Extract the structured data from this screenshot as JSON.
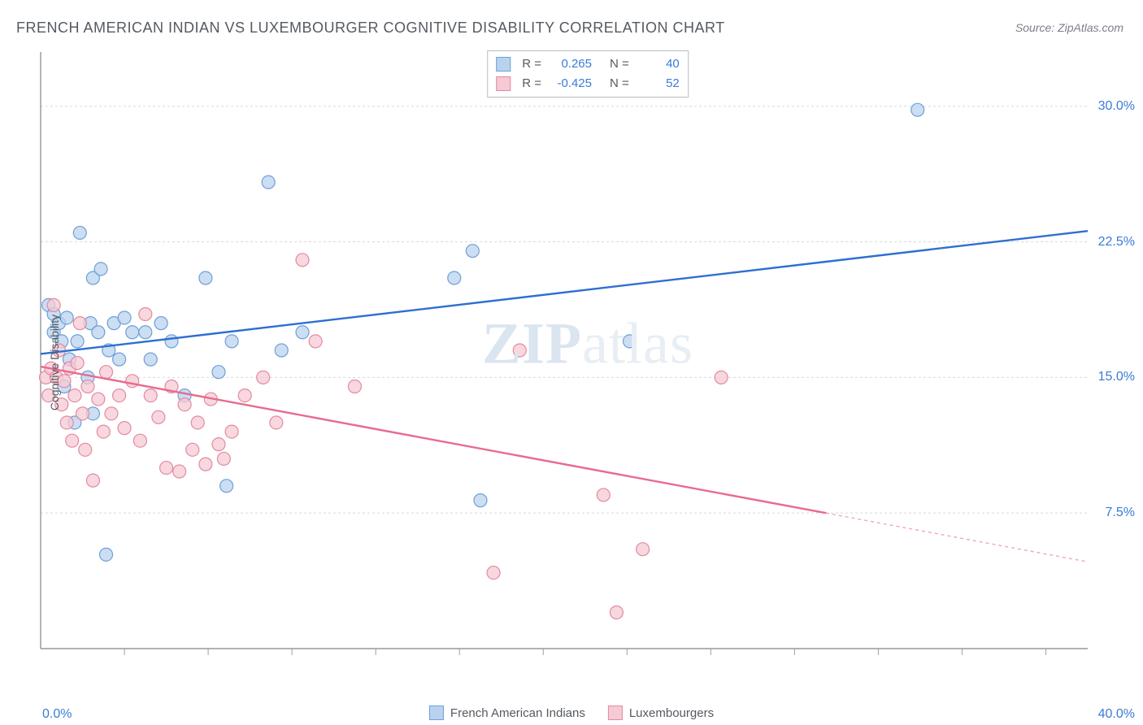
{
  "title": "FRENCH AMERICAN INDIAN VS LUXEMBOURGER COGNITIVE DISABILITY CORRELATION CHART",
  "source_label": "Source: ZipAtlas.com",
  "y_axis_label": "Cognitive Disability",
  "watermark_a": "ZIP",
  "watermark_b": "atlas",
  "chart": {
    "type": "scatter",
    "xlim": [
      0,
      40
    ],
    "ylim": [
      0,
      33
    ],
    "x_tick_left": "0.0%",
    "x_tick_right": "40.0%",
    "y_ticks": [
      {
        "value": 7.5,
        "label": "7.5%"
      },
      {
        "value": 15.0,
        "label": "15.0%"
      },
      {
        "value": 22.5,
        "label": "22.5%"
      },
      {
        "value": 30.0,
        "label": "30.0%"
      }
    ],
    "minor_x_ticks": [
      3.2,
      6.4,
      9.6,
      12.8,
      16,
      19.2,
      22.4,
      25.6,
      28.8,
      32,
      35.2,
      38.4
    ],
    "background_color": "#ffffff",
    "grid_color": "#d7d9dc",
    "grid_dash": "3,3",
    "axis_color": "#7f848b",
    "tick_color": "#9aa0a8",
    "series": [
      {
        "key": "french_american_indians",
        "label": "French American Indians",
        "fill": "#b9d3ee",
        "stroke": "#6f9fd8",
        "line_color": "#2e6fd0",
        "marker_radius": 8,
        "R": "0.265",
        "N": "40",
        "trend": {
          "x1": 0,
          "y1": 16.3,
          "x2": 40,
          "y2": 23.1,
          "dash_from_x": null
        },
        "points": [
          [
            0.3,
            19.0
          ],
          [
            0.5,
            17.5
          ],
          [
            0.5,
            18.5
          ],
          [
            0.7,
            18.0
          ],
          [
            0.8,
            17.0
          ],
          [
            0.9,
            14.5
          ],
          [
            1.0,
            18.3
          ],
          [
            1.1,
            16.0
          ],
          [
            1.3,
            12.5
          ],
          [
            1.4,
            17.0
          ],
          [
            1.5,
            23.0
          ],
          [
            1.8,
            15.0
          ],
          [
            1.9,
            18.0
          ],
          [
            2.0,
            20.5
          ],
          [
            2.0,
            13.0
          ],
          [
            2.2,
            17.5
          ],
          [
            2.3,
            21.0
          ],
          [
            2.5,
            5.2
          ],
          [
            2.6,
            16.5
          ],
          [
            2.8,
            18.0
          ],
          [
            3.0,
            16.0
          ],
          [
            3.2,
            18.3
          ],
          [
            3.5,
            17.5
          ],
          [
            4.0,
            17.5
          ],
          [
            4.2,
            16.0
          ],
          [
            4.6,
            18.0
          ],
          [
            5.0,
            17.0
          ],
          [
            5.5,
            14.0
          ],
          [
            6.3,
            20.5
          ],
          [
            6.8,
            15.3
          ],
          [
            7.1,
            9.0
          ],
          [
            7.3,
            17.0
          ],
          [
            8.7,
            25.8
          ],
          [
            9.2,
            16.5
          ],
          [
            10.0,
            17.5
          ],
          [
            15.8,
            20.5
          ],
          [
            16.5,
            22.0
          ],
          [
            16.8,
            8.2
          ],
          [
            22.5,
            17.0
          ],
          [
            33.5,
            29.8
          ]
        ]
      },
      {
        "key": "luxembourgers",
        "label": "Luxembourgers",
        "fill": "#f6c9d4",
        "stroke": "#e38aa1",
        "line_color": "#e86b8e",
        "marker_radius": 8,
        "R": "-0.425",
        "N": "52",
        "trend": {
          "x1": 0,
          "y1": 15.6,
          "x2": 40,
          "y2": 4.8,
          "dash_from_x": 30
        },
        "points": [
          [
            0.2,
            15.0
          ],
          [
            0.3,
            14.0
          ],
          [
            0.4,
            15.5
          ],
          [
            0.5,
            19.0
          ],
          [
            0.6,
            15.0
          ],
          [
            0.7,
            16.5
          ],
          [
            0.8,
            13.5
          ],
          [
            0.9,
            14.8
          ],
          [
            1.0,
            12.5
          ],
          [
            1.1,
            15.5
          ],
          [
            1.2,
            11.5
          ],
          [
            1.3,
            14.0
          ],
          [
            1.4,
            15.8
          ],
          [
            1.5,
            18.0
          ],
          [
            1.6,
            13.0
          ],
          [
            1.7,
            11.0
          ],
          [
            1.8,
            14.5
          ],
          [
            2.0,
            9.3
          ],
          [
            2.2,
            13.8
          ],
          [
            2.4,
            12.0
          ],
          [
            2.5,
            15.3
          ],
          [
            2.7,
            13.0
          ],
          [
            3.0,
            14.0
          ],
          [
            3.2,
            12.2
          ],
          [
            3.5,
            14.8
          ],
          [
            3.8,
            11.5
          ],
          [
            4.0,
            18.5
          ],
          [
            4.2,
            14.0
          ],
          [
            4.5,
            12.8
          ],
          [
            4.8,
            10.0
          ],
          [
            5.0,
            14.5
          ],
          [
            5.3,
            9.8
          ],
          [
            5.5,
            13.5
          ],
          [
            5.8,
            11.0
          ],
          [
            6.0,
            12.5
          ],
          [
            6.3,
            10.2
          ],
          [
            6.5,
            13.8
          ],
          [
            6.8,
            11.3
          ],
          [
            7.0,
            10.5
          ],
          [
            7.3,
            12.0
          ],
          [
            7.8,
            14.0
          ],
          [
            8.5,
            15.0
          ],
          [
            9.0,
            12.5
          ],
          [
            10.0,
            21.5
          ],
          [
            10.5,
            17.0
          ],
          [
            12.0,
            14.5
          ],
          [
            17.3,
            4.2
          ],
          [
            18.3,
            16.5
          ],
          [
            21.5,
            8.5
          ],
          [
            22.0,
            2.0
          ],
          [
            23.0,
            5.5
          ],
          [
            26.0,
            15.0
          ]
        ]
      }
    ]
  },
  "colors": {
    "title": "#555a60",
    "source": "#7a7f87",
    "tick_label": "#3b7bd6"
  }
}
